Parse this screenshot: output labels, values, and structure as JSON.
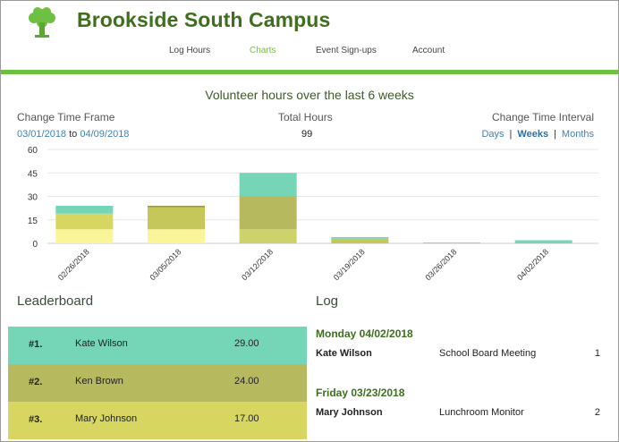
{
  "header": {
    "title": "Brookside South Campus",
    "nav": [
      {
        "label": "Log Hours",
        "active": false
      },
      {
        "label": "Charts",
        "active": true
      },
      {
        "label": "Event Sign-ups",
        "active": false
      },
      {
        "label": "Account",
        "active": false
      }
    ]
  },
  "chart_section": {
    "title": "Volunteer hours over the last 6 weeks",
    "time_frame_label": "Change Time Frame",
    "date_from": "03/01/2018",
    "date_to_word": "to",
    "date_to": "04/09/2018",
    "total_label": "Total Hours",
    "total_value": "99",
    "interval_label": "Change Time Interval",
    "interval_options": [
      "Days",
      "Weeks",
      "Months"
    ],
    "interval_separator": "|",
    "interval_selected": "Weeks"
  },
  "chart_data": {
    "type": "bar",
    "stacked": true,
    "categories": [
      "02/26/2018",
      "03/05/2018",
      "03/12/2018",
      "03/19/2018",
      "03/26/2018",
      "04/02/2018"
    ],
    "series": [
      {
        "color": "#fbf59a",
        "values": [
          9,
          9,
          0,
          0,
          0,
          0
        ]
      },
      {
        "color": "#d6d661",
        "values": [
          10,
          0,
          0,
          0,
          0,
          0
        ]
      },
      {
        "color": "#c6c75a",
        "values": [
          0,
          14,
          0,
          3,
          0,
          0
        ]
      },
      {
        "color": "#cdd36a",
        "values": [
          0,
          0,
          9,
          0,
          0,
          0
        ]
      },
      {
        "color": "#b6b95e",
        "values": [
          0,
          0,
          21,
          0,
          0,
          0
        ]
      },
      {
        "color": "#74d6b6",
        "values": [
          5,
          0,
          15,
          1,
          0.5,
          2
        ]
      },
      {
        "color": "#9a9a4f",
        "values": [
          0,
          1,
          0,
          0,
          0,
          0
        ]
      }
    ],
    "ylim": [
      0,
      60
    ],
    "yticks": [
      0,
      15,
      30,
      45,
      60
    ],
    "grid": true
  },
  "leaderboard": {
    "title": "Leaderboard",
    "rows": [
      {
        "rank": "#1.",
        "name": "Kate Wilson",
        "hours": "29.00",
        "color": "#74d6b6"
      },
      {
        "rank": "#2.",
        "name": "Ken Brown",
        "hours": "24.00",
        "color": "#b6b95e"
      },
      {
        "rank": "#3.",
        "name": "Mary Johnson",
        "hours": "17.00",
        "color": "#d6d661"
      }
    ]
  },
  "log": {
    "title": "Log",
    "groups": [
      {
        "date": "Monday 04/02/2018",
        "entries": [
          {
            "name": "Kate Wilson",
            "event": "School Board Meeting",
            "hours": "1"
          }
        ]
      },
      {
        "date": "Friday 03/23/2018",
        "entries": [
          {
            "name": "Mary Johnson",
            "event": "Lunchroom Monitor",
            "hours": "2"
          }
        ]
      }
    ]
  }
}
